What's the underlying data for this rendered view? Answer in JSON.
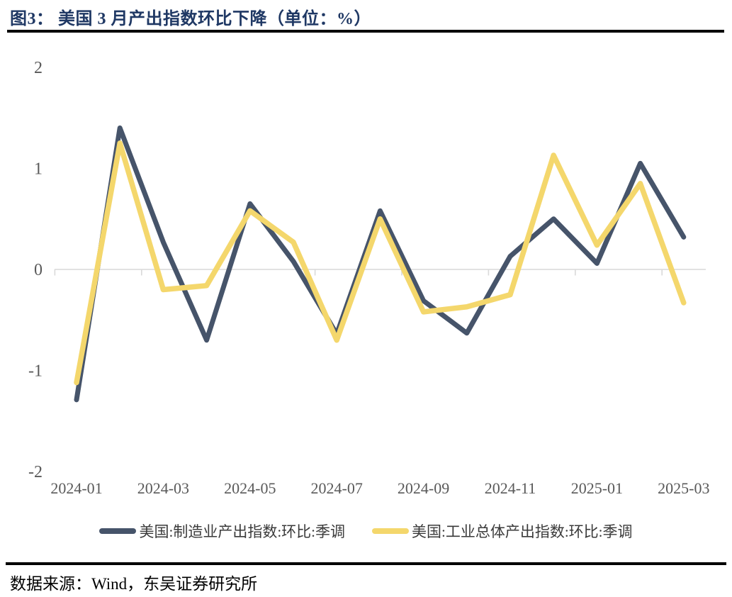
{
  "page": {
    "source": "数据来源：Wind，东吴证券研究所"
  },
  "colors": {
    "title": "#1F3864",
    "rule": "#000000",
    "axis_label": "#595959",
    "gridline": "#D9D9D9",
    "manufacturing_line": "#46546A",
    "industrial_line": "#F4D76C",
    "legend_text": "#3A3A3A",
    "source_text": "#000000"
  },
  "chart_data": {
    "type": "line",
    "title": "图3： 美国 3 月产出指数环比下降（单位：%）",
    "categories": [
      "2024-01",
      "2024-02",
      "2024-03",
      "2024-04",
      "2024-05",
      "2024-06",
      "2024-07",
      "2024-08",
      "2024-09",
      "2024-10",
      "2024-11",
      "2024-12",
      "2025-01",
      "2025-02",
      "2025-03"
    ],
    "x_label_every": 2,
    "series": [
      {
        "name": "美国:制造业产出指数:环比:季调",
        "color": "#46546A",
        "values": [
          -1.29,
          1.4,
          0.27,
          -0.7,
          0.65,
          0.08,
          -0.64,
          0.58,
          -0.31,
          -0.63,
          0.13,
          0.5,
          0.06,
          1.05,
          0.32
        ]
      },
      {
        "name": "美国:工业总体产出指数:环比:季调",
        "color": "#F4D76C",
        "values": [
          -1.12,
          1.25,
          -0.2,
          -0.16,
          0.58,
          0.27,
          -0.7,
          0.5,
          -0.42,
          -0.37,
          -0.25,
          1.13,
          0.24,
          0.85,
          -0.33
        ]
      }
    ],
    "ylim": [
      -2,
      2
    ],
    "y_ticks": [
      2,
      1,
      0,
      -1,
      -2
    ],
    "grid": "zero-line-only",
    "legend_position": "bottom"
  }
}
